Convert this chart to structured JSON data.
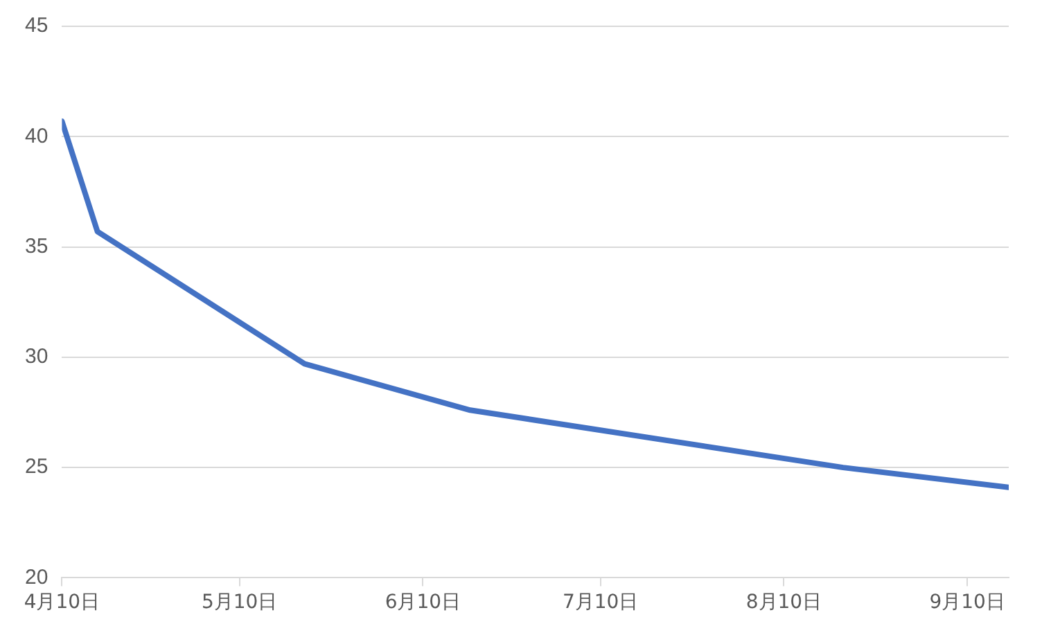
{
  "chart_data": {
    "type": "line",
    "x": [
      "--04-10",
      "--04-16",
      "--05-21",
      "--06-18",
      "--08-20",
      "--09-17"
    ],
    "series": [
      {
        "color": "#4472c4",
        "values": [
          40.7,
          35.7,
          29.7,
          27.6,
          25.0,
          24.1
        ]
      }
    ],
    "xlim": [
      "--04-10",
      "--09-17"
    ],
    "xticks": [
      {
        "value": "--04-10",
        "label": "4月10日"
      },
      {
        "value": "--05-10",
        "label": "5月10日"
      },
      {
        "value": "--06-10",
        "label": "6月10日"
      },
      {
        "value": "--07-10",
        "label": "7月10日"
      },
      {
        "value": "--08-10",
        "label": "8月10日"
      },
      {
        "value": "--09-10",
        "label": "9月10日"
      }
    ],
    "ylim": [
      20,
      45
    ],
    "yticks": [
      20,
      25,
      30,
      35,
      40,
      45
    ],
    "grid": "y",
    "legend": false,
    "marker": "none",
    "line_style": "solid"
  }
}
